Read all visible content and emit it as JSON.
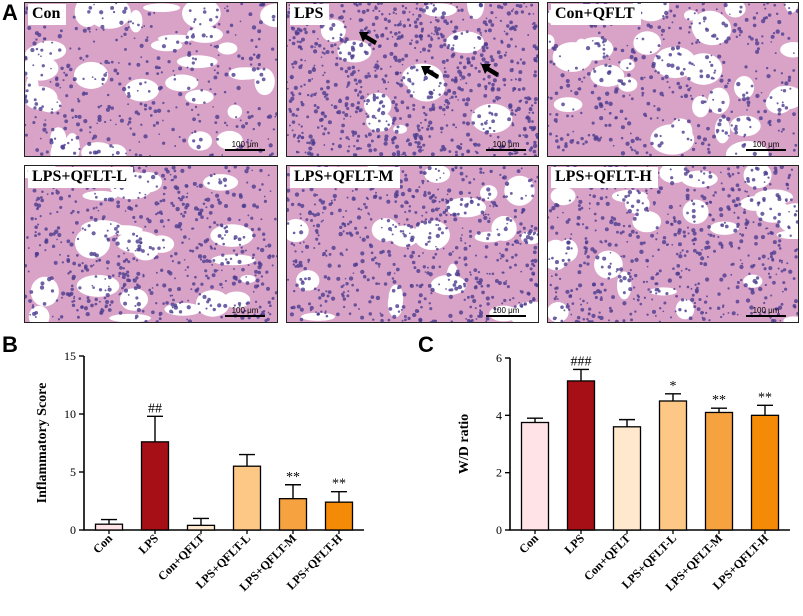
{
  "panel_a": {
    "letter": "A",
    "scale_bar": "100 μm",
    "images": [
      {
        "label": "Con"
      },
      {
        "label": "LPS"
      },
      {
        "label": "Con+QFLT"
      },
      {
        "label": "LPS+QFLT-L"
      },
      {
        "label": "LPS+QFLT-M"
      },
      {
        "label": "LPS+QFLT-H"
      }
    ]
  },
  "panel_b": {
    "letter": "B"
  },
  "panel_c": {
    "letter": "C"
  },
  "colors": {
    "Con": "#ffe3e6",
    "LPS": "#a50f15",
    "Con+QFLT": "#ffe8cc",
    "LPS+QFLT-L": "#fdc785",
    "LPS+QFLT-M": "#f7a240",
    "LPS+QFLT-H": "#f58a07",
    "tissue_bg": "#d9a3c8",
    "nuclei": "#4b3c8f"
  },
  "chart_data": [
    {
      "type": "bar",
      "panel": "B",
      "ylabel": "Inflammatory Score",
      "categories": [
        "Con",
        "LPS",
        "Con+QFLT",
        "LPS+QFLT-L",
        "LPS+QFLT-M",
        "LPS+QFLT-H"
      ],
      "values": [
        0.5,
        7.6,
        0.4,
        5.5,
        2.7,
        2.4
      ],
      "errors": [
        0.4,
        2.2,
        0.6,
        1.0,
        1.2,
        0.9
      ],
      "annotations": [
        "",
        "##",
        "",
        "",
        "**",
        "**"
      ],
      "ylim": [
        0,
        15
      ],
      "yticks": [
        0,
        5,
        10,
        15
      ]
    },
    {
      "type": "bar",
      "panel": "C",
      "ylabel": "W/D ratio",
      "categories": [
        "Con",
        "LPS",
        "Con+QFLT",
        "LPS+QFLT-L",
        "LPS+QFLT-M",
        "LPS+QFLT-H"
      ],
      "values": [
        3.75,
        5.2,
        3.6,
        4.5,
        4.1,
        4.0
      ],
      "errors": [
        0.15,
        0.4,
        0.25,
        0.25,
        0.15,
        0.35
      ],
      "annotations": [
        "",
        "###",
        "",
        "*",
        "**",
        "**"
      ],
      "ylim": [
        0,
        6
      ],
      "yticks": [
        0,
        2,
        4,
        6
      ]
    }
  ]
}
